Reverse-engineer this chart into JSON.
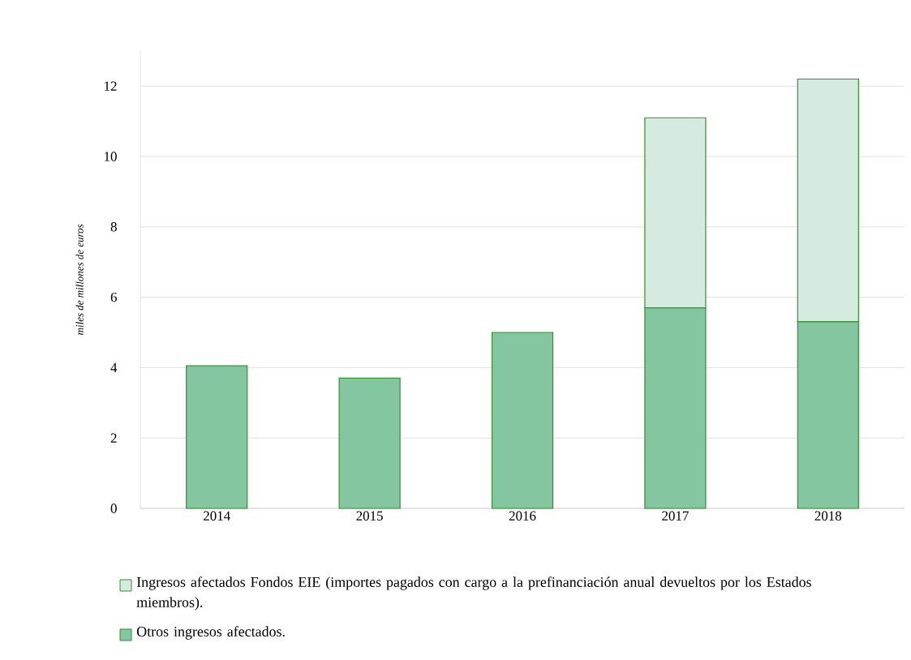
{
  "chart_data": {
    "type": "bar",
    "stacked": true,
    "ylabel": "*miles de millones de euros*",
    "categories": [
      "2014",
      "2015",
      "2016",
      "2017",
      "2018"
    ],
    "series": [
      {
        "name": "Otros ingresos afectados.",
        "color": "#84c6a0",
        "values": [
          4.05,
          3.7,
          5.0,
          5.7,
          5.3
        ]
      },
      {
        "name": "Ingresos afectados Fondos EIE (importes pagados con cargo a la prefinanciación anual devueltos por los Estados miembros).",
        "color": "#d5ebe0",
        "values": [
          null,
          null,
          null,
          5.4,
          6.9
        ]
      }
    ],
    "ylim": [
      0,
      13
    ],
    "yticks": [
      0,
      2,
      4,
      6,
      8,
      10,
      12
    ],
    "grid": "y",
    "legend": "bottom"
  }
}
